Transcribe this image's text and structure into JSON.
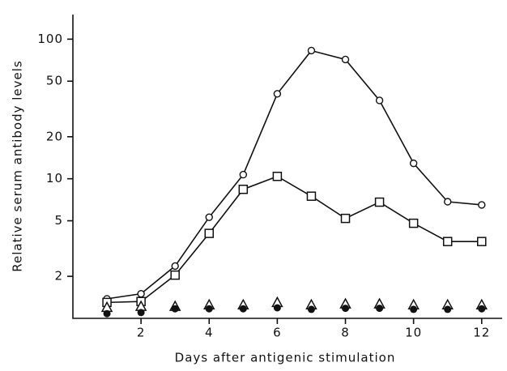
{
  "chart_data": {
    "type": "line",
    "x_label": "Days after antigenic stimulation",
    "y_label": "Relative serum antibody levels",
    "x": [
      1,
      2,
      3,
      4,
      5,
      6,
      7,
      8,
      9,
      10,
      11,
      12
    ],
    "xlim": [
      0,
      12.6
    ],
    "xticks": [
      2,
      4,
      6,
      8,
      10,
      12
    ],
    "ylim": [
      1,
      150
    ],
    "yticks": [
      2,
      5,
      10,
      20,
      50,
      100
    ],
    "y_scale": "log",
    "grid": false,
    "series": [
      {
        "color": "#111111",
        "marker": "circle",
        "line": true,
        "values": [
          1.38,
          1.5,
          2.37,
          5.3,
          10.7,
          40.6,
          82.8,
          71.5,
          36.4,
          12.9,
          6.85,
          6.5
        ]
      },
      {
        "color": "#111111",
        "marker": "square",
        "line": true,
        "values": [
          1.3,
          1.32,
          2.04,
          4.06,
          8.4,
          10.4,
          7.5,
          5.2,
          6.8,
          4.8,
          3.55,
          3.55
        ]
      },
      {
        "color": "#111111",
        "marker": "triangle",
        "line": false,
        "values": [
          1.2,
          1.22,
          1.22,
          1.25,
          1.25,
          1.3,
          1.25,
          1.27,
          1.27,
          1.25,
          1.25,
          1.25
        ]
      },
      {
        "color": "#111111",
        "marker": "filled-circle",
        "line": false,
        "values": [
          1.08,
          1.1,
          1.17,
          1.17,
          1.17,
          1.19,
          1.16,
          1.18,
          1.18,
          1.16,
          1.16,
          1.17
        ]
      }
    ]
  }
}
